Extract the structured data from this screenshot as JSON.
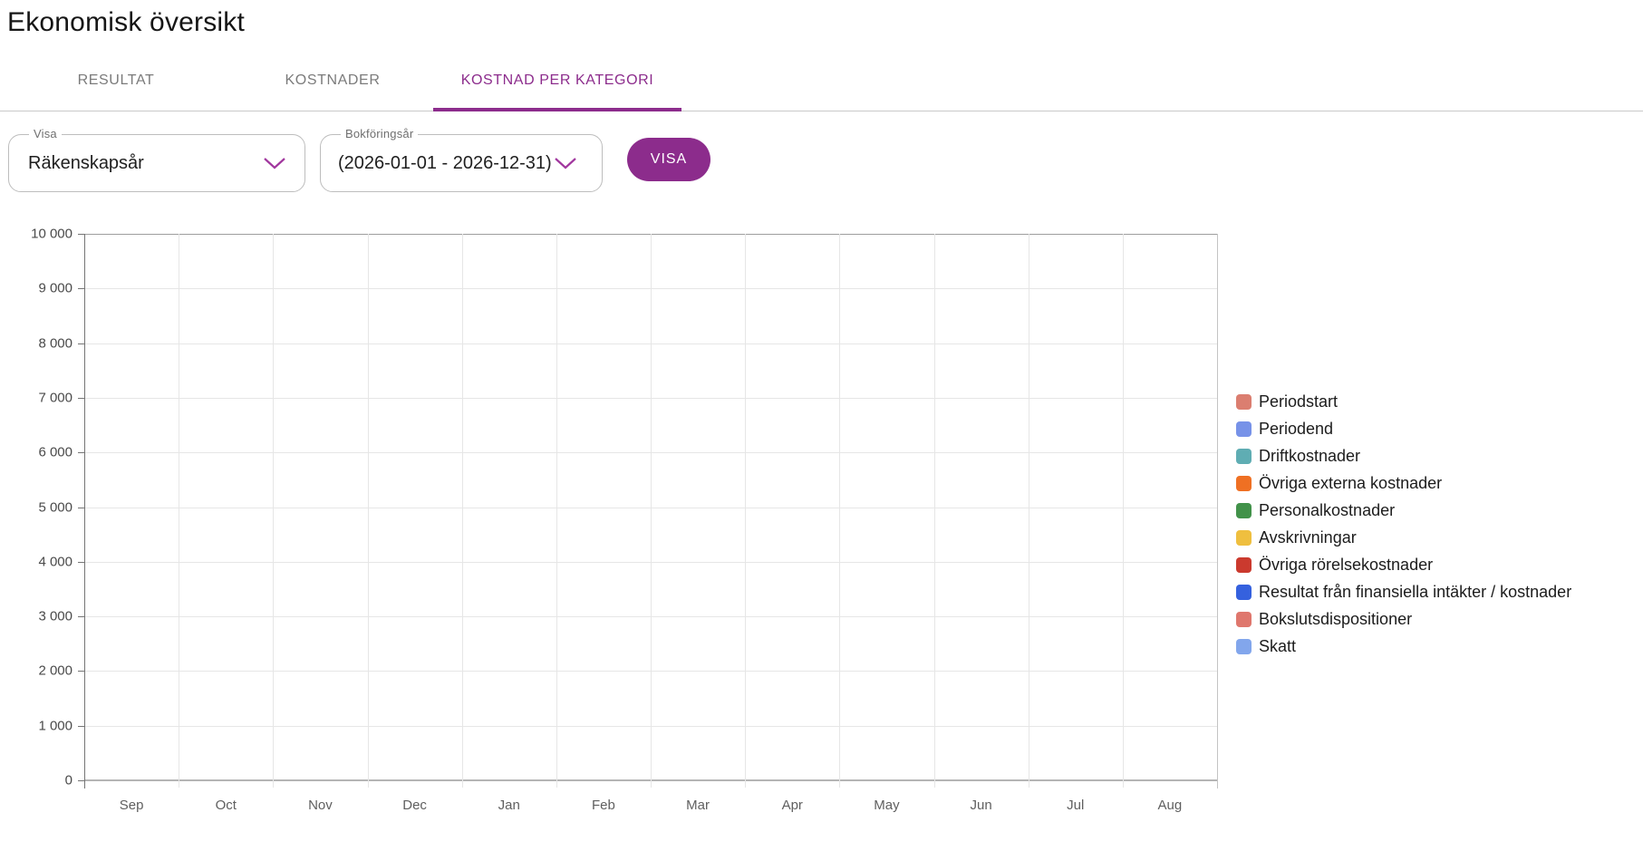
{
  "page": {
    "title": "Ekonomisk översikt"
  },
  "colors": {
    "accent": "#8C2C8C",
    "tab_inactive": "#7b7b7b",
    "grid": "#e6e6e6",
    "axis": "#757575"
  },
  "tabs": {
    "items": [
      {
        "label": "RESULTAT",
        "active": false
      },
      {
        "label": "KOSTNADER",
        "active": false
      },
      {
        "label": "KOSTNAD PER KATEGORI",
        "active": true
      }
    ]
  },
  "filters": {
    "visa_select": {
      "label": "Visa",
      "value": "Räkenskapsår",
      "icon": "chevron-down-icon"
    },
    "bokforingsar_select": {
      "label": "Bokföringsår",
      "value": "(2026-01-01 - 2026-12-31)",
      "icon": "chevron-down-icon"
    },
    "submit_button_label": "VISA"
  },
  "chart_data": {
    "type": "bar",
    "title": "",
    "xlabel": "",
    "ylabel": "",
    "categories": [
      "Sep",
      "Oct",
      "Nov",
      "Dec",
      "Jan",
      "Feb",
      "Mar",
      "Apr",
      "May",
      "Jun",
      "Jul",
      "Aug"
    ],
    "series": [
      {
        "name": "Periodstart",
        "color": "#DB7E70",
        "values": [
          0,
          0,
          0,
          0,
          0,
          0,
          0,
          0,
          0,
          0,
          0,
          0
        ]
      },
      {
        "name": "Periodend",
        "color": "#7792E8",
        "values": [
          0,
          0,
          0,
          0,
          0,
          0,
          0,
          0,
          0,
          0,
          0,
          0
        ]
      },
      {
        "name": "Driftkostnader",
        "color": "#5FADB3",
        "values": [
          0,
          0,
          0,
          0,
          0,
          0,
          0,
          0,
          0,
          0,
          0,
          0
        ]
      },
      {
        "name": "Övriga externa kostnader",
        "color": "#EF7023",
        "values": [
          0,
          0,
          0,
          0,
          0,
          0,
          0,
          0,
          0,
          0,
          0,
          0
        ]
      },
      {
        "name": "Personalkostnader",
        "color": "#42924A",
        "values": [
          0,
          0,
          0,
          0,
          0,
          0,
          0,
          0,
          0,
          0,
          0,
          0
        ]
      },
      {
        "name": "Avskrivningar",
        "color": "#EFBF3F",
        "values": [
          0,
          0,
          0,
          0,
          0,
          0,
          0,
          0,
          0,
          0,
          0,
          0
        ]
      },
      {
        "name": "Övriga rörelsekostnader",
        "color": "#CB3A2E",
        "values": [
          0,
          0,
          0,
          0,
          0,
          0,
          0,
          0,
          0,
          0,
          0,
          0
        ]
      },
      {
        "name": "Resultat från finansiella intäkter / kostnader",
        "color": "#3561DE",
        "values": [
          0,
          0,
          0,
          0,
          0,
          0,
          0,
          0,
          0,
          0,
          0,
          0
        ]
      },
      {
        "name": "Bokslutsdispositioner",
        "color": "#DF776D",
        "values": [
          0,
          0,
          0,
          0,
          0,
          0,
          0,
          0,
          0,
          0,
          0,
          0
        ]
      },
      {
        "name": "Skatt",
        "color": "#82A6EC",
        "values": [
          0,
          0,
          0,
          0,
          0,
          0,
          0,
          0,
          0,
          0,
          0,
          0
        ]
      }
    ],
    "ylim": [
      0,
      10000
    ],
    "ytick_step": 1000,
    "ytick_labels_top_down": [
      "10 000",
      "9 000",
      "8 000",
      "7 000",
      "6 000",
      "5 000",
      "4 000",
      "3 000",
      "2 000",
      "1 000",
      "0"
    ],
    "grid": true,
    "legend_position": "right"
  }
}
